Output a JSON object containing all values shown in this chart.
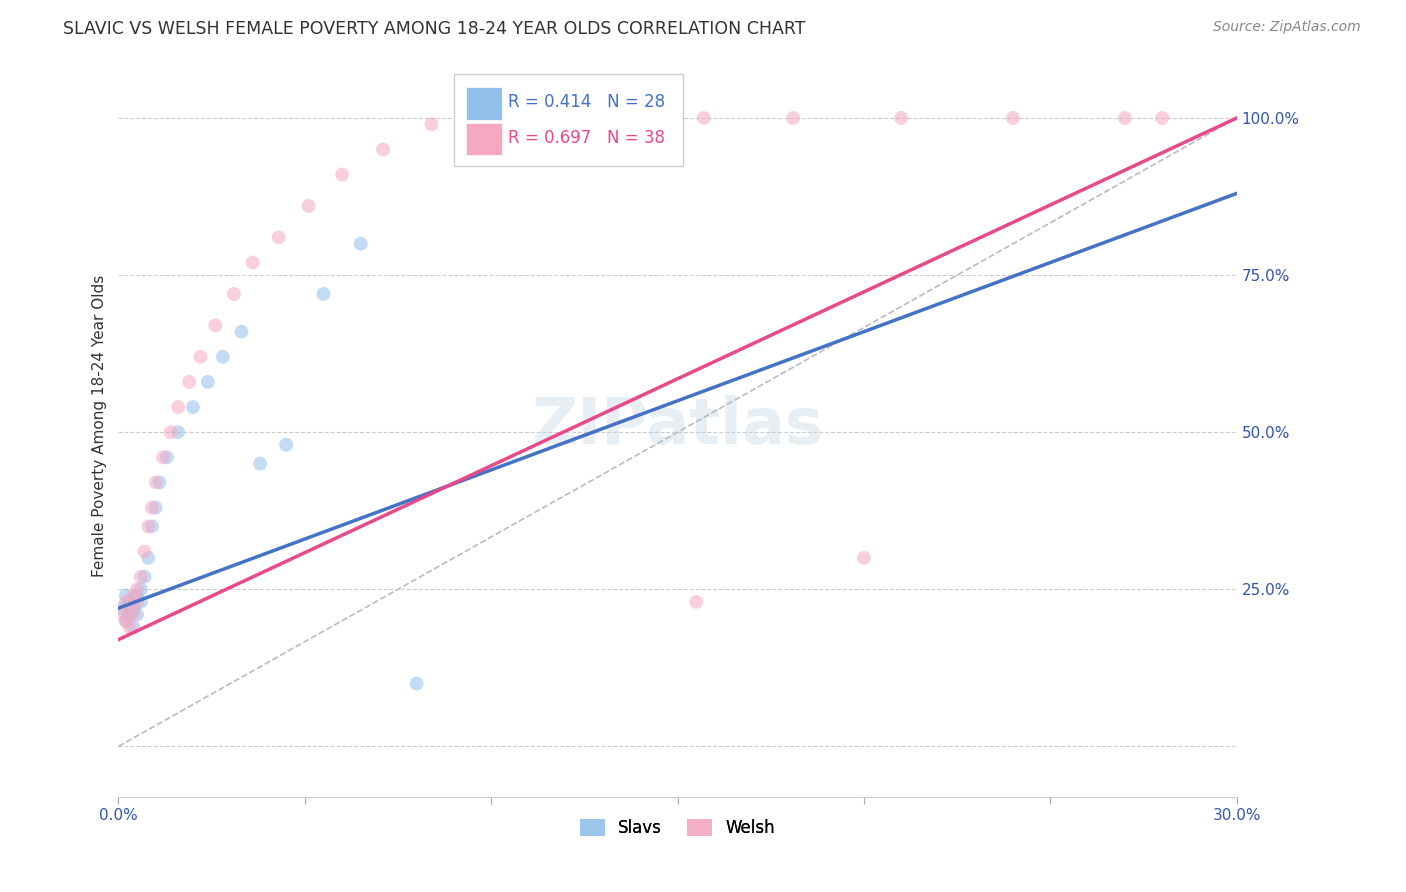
{
  "title": "SLAVIC VS WELSH FEMALE POVERTY AMONG 18-24 YEAR OLDS CORRELATION CHART",
  "source": "Source: ZipAtlas.com",
  "ylabel": "Female Poverty Among 18-24 Year Olds",
  "xlim": [
    0.0,
    0.3
  ],
  "ylim": [
    -0.08,
    1.1
  ],
  "slavic_R": 0.414,
  "slavic_N": 28,
  "welsh_R": 0.697,
  "welsh_N": 38,
  "slavic_color": "#92C0EC",
  "welsh_color": "#F5A8C0",
  "slavic_line_color": "#4472C4",
  "welsh_line_color": "#E8498A",
  "diagonal_color": "#BBBBBB",
  "background_color": "#FFFFFF",
  "grid_color": "#CCCCCC",
  "watermark": "ZIPatlas",
  "marker_size": 100,
  "marker_alpha": 0.55,
  "slavs_x": [
    0.001,
    0.002,
    0.002,
    0.003,
    0.003,
    0.004,
    0.004,
    0.005,
    0.005,
    0.006,
    0.006,
    0.007,
    0.008,
    0.009,
    0.01,
    0.011,
    0.013,
    0.016,
    0.02,
    0.024,
    0.028,
    0.033,
    0.038,
    0.045,
    0.055,
    0.065,
    0.08,
    0.145
  ],
  "slavs_y": [
    0.22,
    0.2,
    0.24,
    0.21,
    0.23,
    0.19,
    0.22,
    0.21,
    0.24,
    0.23,
    0.25,
    0.27,
    0.3,
    0.35,
    0.38,
    0.42,
    0.46,
    0.5,
    0.54,
    0.58,
    0.62,
    0.66,
    0.45,
    0.48,
    0.72,
    0.8,
    0.1,
    0.95
  ],
  "welsh_x": [
    0.001,
    0.002,
    0.002,
    0.003,
    0.003,
    0.004,
    0.004,
    0.005,
    0.005,
    0.006,
    0.007,
    0.008,
    0.009,
    0.01,
    0.012,
    0.014,
    0.016,
    0.019,
    0.022,
    0.026,
    0.031,
    0.036,
    0.043,
    0.051,
    0.06,
    0.071,
    0.084,
    0.099,
    0.116,
    0.135,
    0.157,
    0.181,
    0.21,
    0.24,
    0.27,
    0.28,
    0.155,
    0.2
  ],
  "welsh_y": [
    0.21,
    0.2,
    0.23,
    0.22,
    0.19,
    0.24,
    0.21,
    0.25,
    0.23,
    0.27,
    0.31,
    0.35,
    0.38,
    0.42,
    0.46,
    0.5,
    0.54,
    0.58,
    0.62,
    0.67,
    0.72,
    0.77,
    0.81,
    0.86,
    0.91,
    0.95,
    0.99,
    1.0,
    1.0,
    1.0,
    1.0,
    1.0,
    1.0,
    1.0,
    1.0,
    1.0,
    0.23,
    0.3
  ],
  "slavic_line": [
    0.0,
    0.3,
    0.22,
    0.88
  ],
  "welsh_line": [
    0.0,
    0.3,
    0.17,
    1.0
  ]
}
